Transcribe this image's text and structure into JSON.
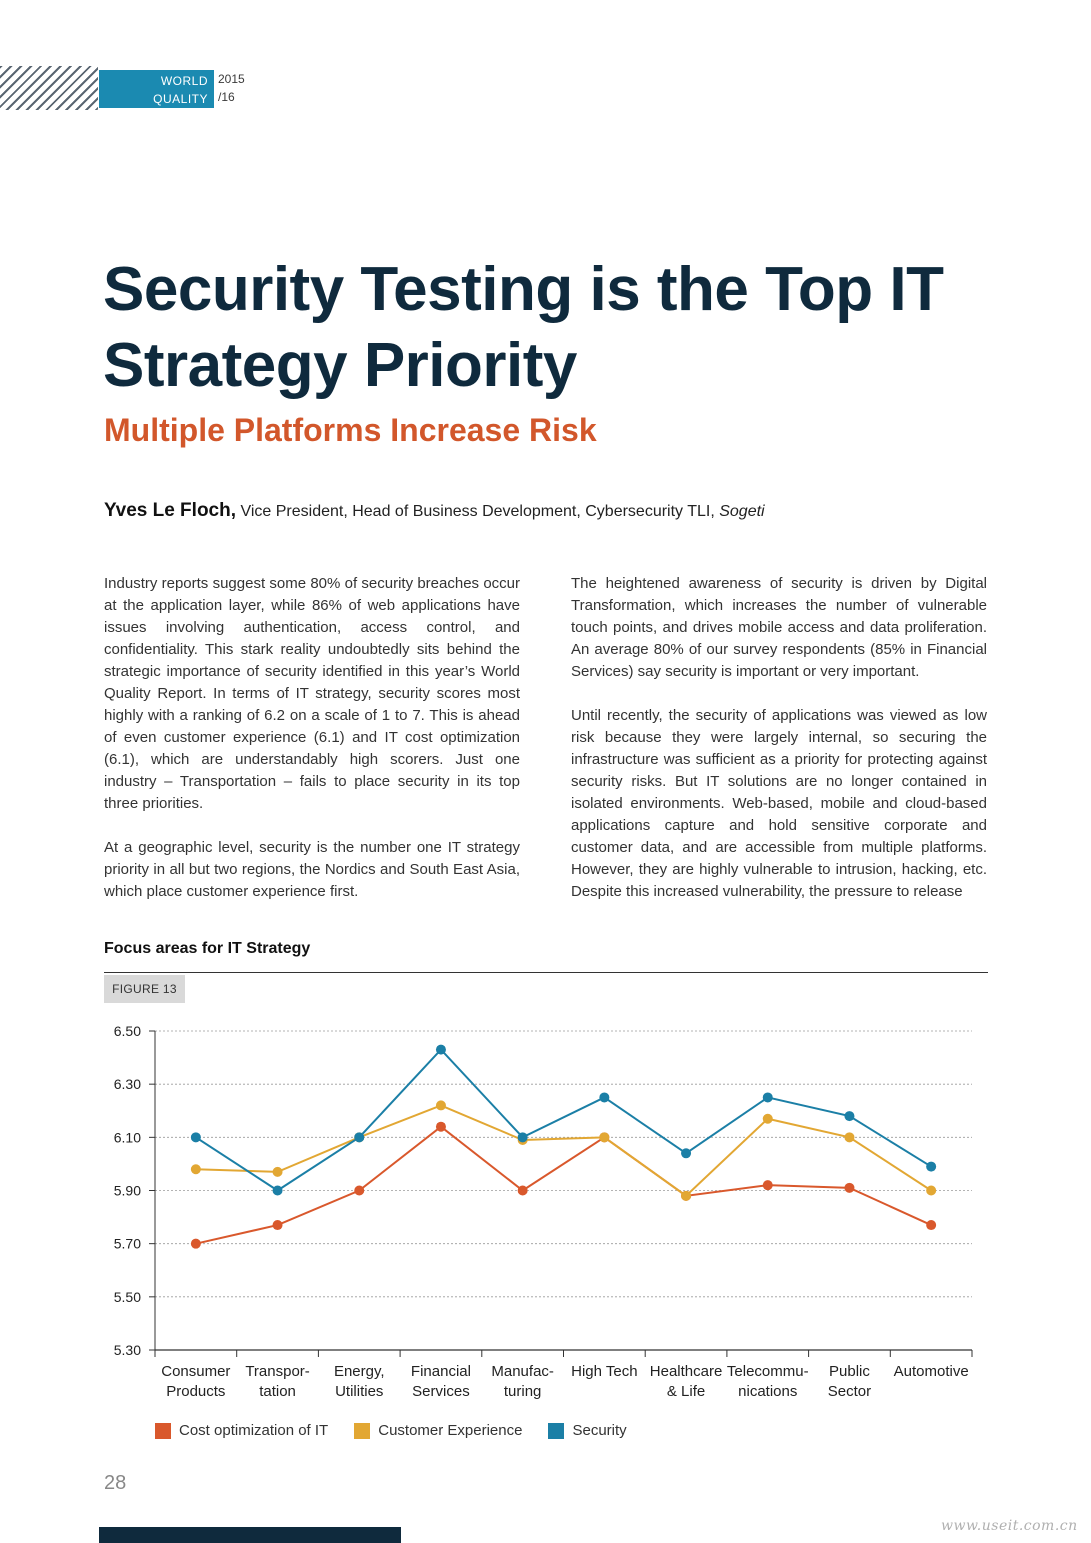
{
  "header": {
    "badge_line1": "WORLD",
    "badge_line2": "QUALITY REPORT",
    "year_line1": "2015",
    "year_line2": "/16"
  },
  "article": {
    "title_line1": "Security Testing is the Top IT",
    "title_line2": "Strategy Priority",
    "subtitle": "Multiple Platforms Increase Risk",
    "author_name": "Yves Le Floch,",
    "author_role": "Vice President, Head of Business Development, Cybersecurity TLI,",
    "author_org": "Sogeti",
    "left_paragraphs": [
      "Industry reports suggest some 80% of security breaches occur at the application layer, while 86% of web applications have issues involving authentication, access control, and confidentiality. This stark reality undoubtedly sits behind the strategic importance of security identified in this year’s World Quality Report. In terms of IT strategy, security scores most highly with a ranking of 6.2 on a scale of 1 to 7. This is ahead of even customer experience (6.1) and IT cost optimization (6.1), which are understandably high scorers. Just one industry – Transportation – fails to place security in its top three priorities.",
      "At a geographic level, security is the number one IT strategy priority in all but two regions, the Nordics and South East Asia, which place customer experience first."
    ],
    "right_paragraphs": [
      "The heightened awareness of security is driven by Digital Transformation, which increases the number of vulnerable touch points, and drives mobile access and data proliferation. An average 80% of our survey respondents (85% in Financial Services) say security is important or very important.",
      "Until recently, the security of applications was viewed as low risk because they were largely internal, so securing the infrastructure was sufficient as a priority for protecting against security risks. But IT solutions are no longer contained in isolated environments. Web-based, mobile and cloud-based applications capture and hold sensitive corporate and customer data, and are accessible from multiple platforms. However, they are highly vulnerable to intrusion, hacking, etc. Despite this increased vulnerability, the pressure to release"
    ]
  },
  "figure": {
    "heading": "Focus areas for IT Strategy",
    "tag": "FIGURE 13"
  },
  "chart_data": {
    "type": "line",
    "title": "Focus areas for IT Strategy",
    "xlabel": "",
    "ylabel": "",
    "ylim": [
      5.3,
      6.5
    ],
    "yticks": [
      "6.50",
      "6.30",
      "6.10",
      "5.90",
      "5.70",
      "5.50",
      "5.30"
    ],
    "grid": true,
    "legend_position": "bottom",
    "categories": [
      [
        "Consumer",
        "Products"
      ],
      [
        "Transpor-",
        "tation"
      ],
      [
        "Energy,",
        "Utilities"
      ],
      [
        "Financial",
        "Services"
      ],
      [
        "Manufac-",
        "turing"
      ],
      [
        "High Tech",
        ""
      ],
      [
        "Healthcare",
        "& Life"
      ],
      [
        "Telecommu-",
        "nications"
      ],
      [
        "Public",
        "Sector"
      ],
      [
        "Automotive",
        ""
      ]
    ],
    "series": [
      {
        "name": "Cost optimization of IT",
        "color": "#d9582c",
        "values": [
          5.7,
          5.77,
          5.9,
          6.14,
          5.9,
          6.1,
          5.88,
          5.92,
          5.91,
          5.77
        ]
      },
      {
        "name": "Customer Experience",
        "color": "#e2a733",
        "values": [
          5.98,
          5.97,
          6.1,
          6.22,
          6.09,
          6.1,
          5.88,
          6.17,
          6.1,
          5.9
        ]
      },
      {
        "name": "Security",
        "color": "#1b7fa6",
        "values": [
          6.1,
          5.9,
          6.1,
          6.43,
          6.1,
          6.25,
          6.04,
          6.25,
          6.18,
          5.99
        ]
      }
    ]
  },
  "footer": {
    "page_number": "28",
    "watermark": "www.useit.com.cn"
  }
}
